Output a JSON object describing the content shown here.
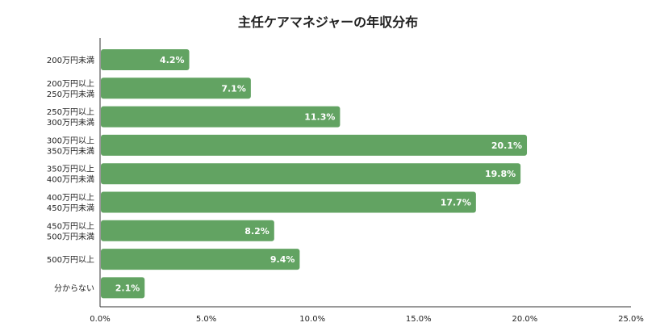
{
  "chart_data": {
    "type": "bar",
    "orientation": "horizontal",
    "title": "主任ケアマネジャーの年収分布",
    "categories": [
      [
        "200万円未満"
      ],
      [
        "200万円以上",
        "250万円未満"
      ],
      [
        "250万円以上",
        "300万円未満"
      ],
      [
        "300万円以上",
        "350万円未満"
      ],
      [
        "350万円以上",
        "400万円未満"
      ],
      [
        "400万円以上",
        "450万円未満"
      ],
      [
        "450万円以上",
        "500万円未満"
      ],
      [
        "500万円以上"
      ],
      [
        "分からない"
      ]
    ],
    "values": [
      4.2,
      7.1,
      11.3,
      20.1,
      19.8,
      17.7,
      8.2,
      9.4,
      2.1
    ],
    "value_labels": [
      "4.2%",
      "7.1%",
      "11.3%",
      "20.1%",
      "19.8%",
      "17.7%",
      "8.2%",
      "9.4%",
      "2.1%"
    ],
    "xlim": [
      0,
      25
    ],
    "xticks": [
      "0.0%",
      "5.0%",
      "10.0%",
      "15.0%",
      "20.0%",
      "25.0%"
    ],
    "grid": false,
    "legend": "none",
    "colors": {
      "bar": "#62a362",
      "label": "#ffffff",
      "axis": "#333333",
      "text": "#222222"
    }
  }
}
